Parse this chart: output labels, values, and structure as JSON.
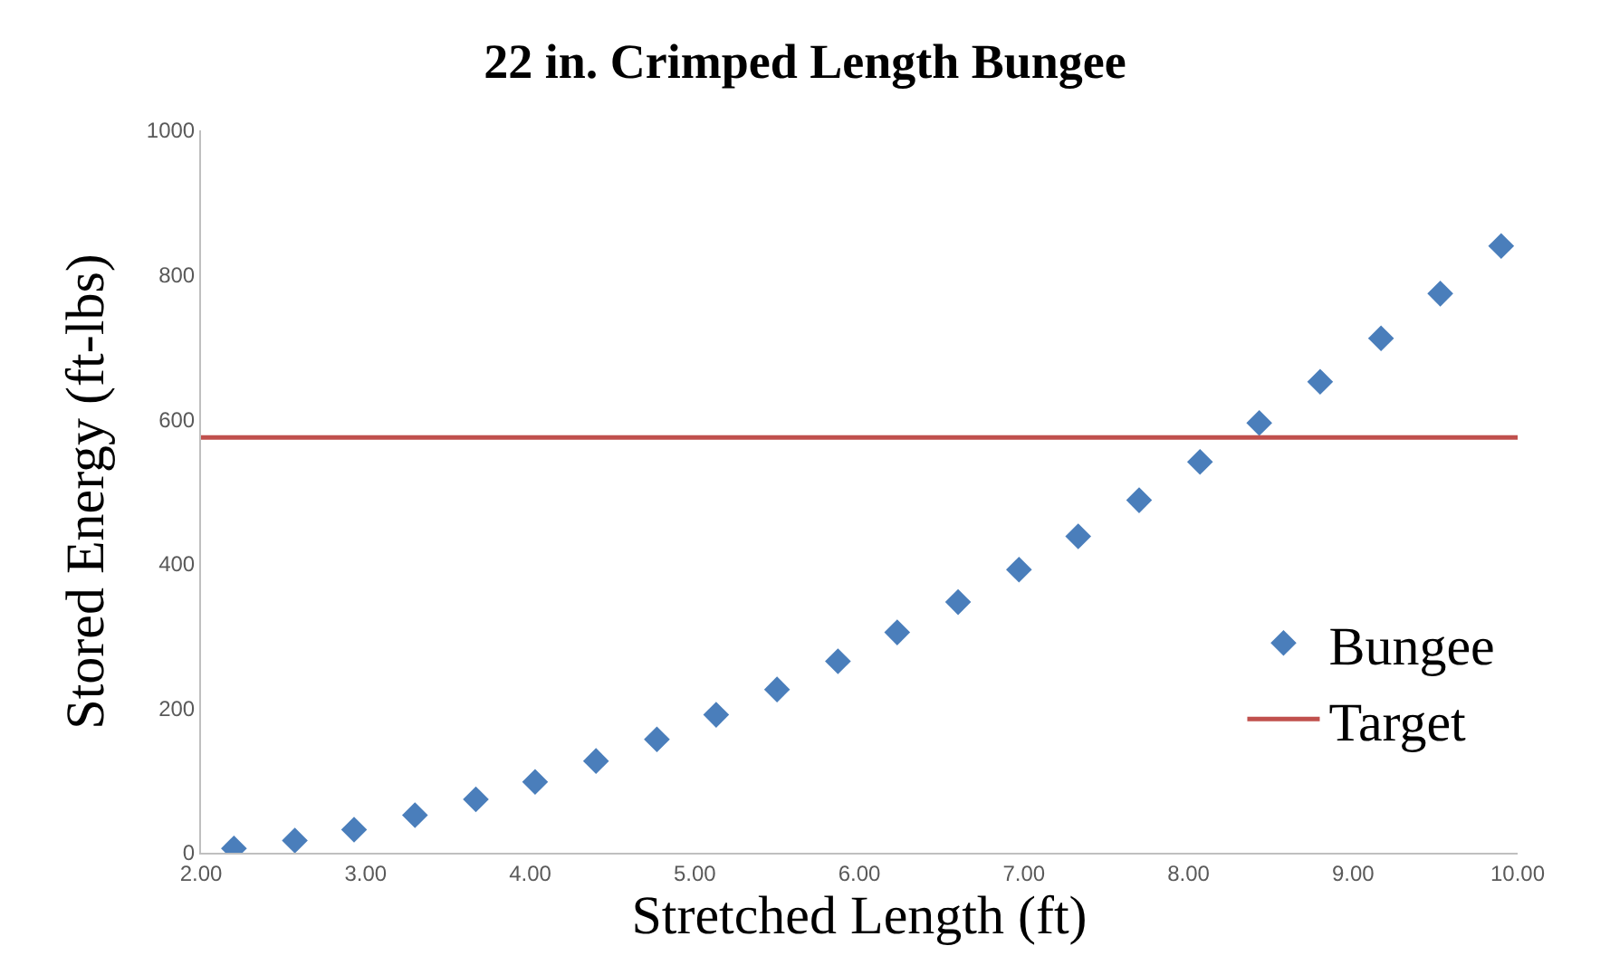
{
  "chart_data": {
    "type": "scatter",
    "title": "22 in. Crimped Length Bungee",
    "xlabel": "Stretched Length (ft)",
    "ylabel": "Stored Energy (ft-lbs)",
    "x": [
      2.2,
      2.57,
      2.93,
      3.3,
      3.67,
      4.03,
      4.4,
      4.77,
      5.13,
      5.5,
      5.87,
      6.23,
      6.6,
      6.97,
      7.33,
      7.7,
      8.07,
      8.43,
      8.8,
      9.17,
      9.53,
      9.9
    ],
    "series": [
      {
        "name": "Bungee",
        "color": "#4a7ebb",
        "values": [
          6,
          17,
          32,
          52,
          74,
          98,
          127,
          157,
          191,
          226,
          265,
          305,
          347,
          392,
          438,
          488,
          541,
          595,
          652,
          712,
          774,
          840
        ]
      }
    ],
    "ref_lines": [
      {
        "axis": "y",
        "value": 575,
        "label": "Target",
        "color": "#c0504d",
        "line_style": "solid"
      }
    ],
    "xlim": [
      2,
      10
    ],
    "xticks": [
      {
        "value": 2,
        "label": "2.00"
      },
      {
        "value": 3,
        "label": "3.00"
      },
      {
        "value": 4,
        "label": "4.00"
      },
      {
        "value": 5,
        "label": "5.00"
      },
      {
        "value": 6,
        "label": "6.00"
      },
      {
        "value": 7,
        "label": "7.00"
      },
      {
        "value": 8,
        "label": "8.00"
      },
      {
        "value": 9,
        "label": "9.00"
      },
      {
        "value": 10,
        "label": "10.00"
      }
    ],
    "ylim": [
      0,
      1000
    ],
    "yticks": [
      0,
      200,
      400,
      600,
      800,
      1000
    ],
    "marker": "diamond",
    "legend": "bottom right"
  }
}
